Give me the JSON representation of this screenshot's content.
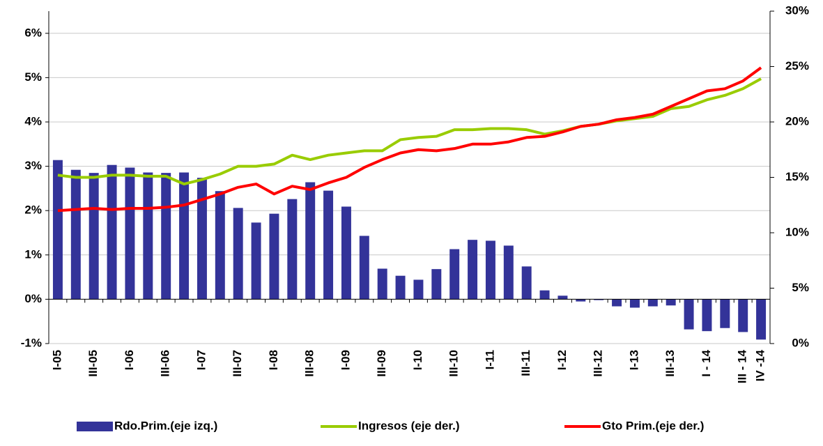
{
  "chart_data": {
    "type": "bar",
    "categories": [
      "I-05",
      null,
      "III-05",
      null,
      "I-06",
      null,
      "III-06",
      null,
      "I-07",
      null,
      "III-07",
      null,
      "I-08",
      null,
      "III-08",
      null,
      "I-09",
      null,
      "III-09",
      null,
      "I-10",
      null,
      "III-10",
      null,
      "I-11",
      null,
      "III-11",
      null,
      "I-12",
      null,
      "III-12",
      null,
      "I-13",
      null,
      "III-13",
      null,
      "I - 14",
      null,
      "III - 14",
      "IV -14"
    ],
    "series": [
      {
        "name": "Rdo.Prim.(eje izq.)",
        "type": "bar",
        "color": "#333399",
        "values": [
          3.14,
          2.92,
          2.85,
          3.03,
          2.97,
          2.86,
          2.85,
          2.86,
          2.74,
          2.44,
          2.06,
          1.73,
          1.93,
          2.26,
          2.64,
          2.45,
          2.09,
          1.43,
          0.69,
          0.53,
          0.44,
          0.68,
          1.13,
          1.34,
          1.32,
          1.21,
          0.74,
          0.2,
          0.08,
          -0.05,
          -0.02,
          -0.16,
          -0.19,
          -0.16,
          -0.14,
          -0.68,
          -0.72,
          -0.65,
          -0.74,
          -0.91
        ]
      },
      {
        "name": "Ingresos (eje der.)",
        "type": "line",
        "axis": "y2",
        "color": "#99cc00",
        "values": [
          15.2,
          15.0,
          15.0,
          15.2,
          15.2,
          15.1,
          15.1,
          14.4,
          14.8,
          15.3,
          16.0,
          16.0,
          16.2,
          17.0,
          16.6,
          17.0,
          17.2,
          17.4,
          17.4,
          18.4,
          18.6,
          18.7,
          19.3,
          19.3,
          19.4,
          19.4,
          19.3,
          18.9,
          19.2,
          19.6,
          19.8,
          20.1,
          20.3,
          20.5,
          21.2,
          21.4,
          22.0,
          22.4,
          23.0,
          23.9
        ]
      },
      {
        "name": "Gto Prim.(eje der.)",
        "type": "line",
        "axis": "y2",
        "color": "#ff0000",
        "values": [
          12.0,
          12.1,
          12.2,
          12.1,
          12.2,
          12.2,
          12.3,
          12.5,
          13.0,
          13.5,
          14.1,
          14.4,
          13.5,
          14.2,
          13.9,
          14.5,
          15.0,
          15.9,
          16.6,
          17.2,
          17.5,
          17.4,
          17.6,
          18.0,
          18.0,
          18.2,
          18.6,
          18.7,
          19.1,
          19.6,
          19.8,
          20.2,
          20.4,
          20.7,
          21.4,
          22.1,
          22.8,
          23.0,
          23.7,
          24.9
        ]
      }
    ],
    "ylim": [
      -1,
      6.5
    ],
    "yticks": [
      {
        "value": -1,
        "label": "-1%"
      },
      {
        "value": 0,
        "label": "0%"
      },
      {
        "value": 1,
        "label": "1%"
      },
      {
        "value": 2,
        "label": "2%"
      },
      {
        "value": 3,
        "label": "3%"
      },
      {
        "value": 4,
        "label": "4%"
      },
      {
        "value": 5,
        "label": "5%"
      },
      {
        "value": 6,
        "label": "6%"
      }
    ],
    "y2lim": [
      0,
      30
    ],
    "y2ticks": [
      {
        "value": 0,
        "label": "0%"
      },
      {
        "value": 5,
        "label": "5%"
      },
      {
        "value": 10,
        "label": "10%"
      },
      {
        "value": 15,
        "label": "15%"
      },
      {
        "value": 20,
        "label": "20%"
      },
      {
        "value": 25,
        "label": "25%"
      },
      {
        "value": 30,
        "label": "30%"
      }
    ],
    "grid": true,
    "legend": "bottom"
  }
}
